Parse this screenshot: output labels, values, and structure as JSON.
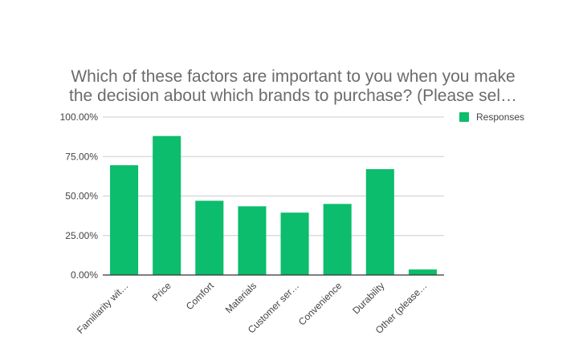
{
  "chart_data": {
    "type": "bar",
    "title_lines": [
      "Which of these factors are important to you when you make",
      "the decision about which brands to purchase? (Please sel…"
    ],
    "categories": [
      "Familiarity wit…",
      "Price",
      "Comfort",
      "Materials",
      "Customer ser…",
      "Convenience",
      "Durability",
      "Other (please…"
    ],
    "series": [
      {
        "name": "Responses",
        "color": "#0bbd6c",
        "values": [
          0.695,
          0.88,
          0.47,
          0.435,
          0.395,
          0.45,
          0.67,
          0.035
        ]
      }
    ],
    "ylim": [
      0,
      1
    ],
    "yticks": [
      "0.00%",
      "25.00%",
      "50.00%",
      "75.00%",
      "100.00%"
    ],
    "ytick_values": [
      0,
      0.25,
      0.5,
      0.75,
      1.0
    ],
    "grid": true,
    "legend": "top-right"
  }
}
